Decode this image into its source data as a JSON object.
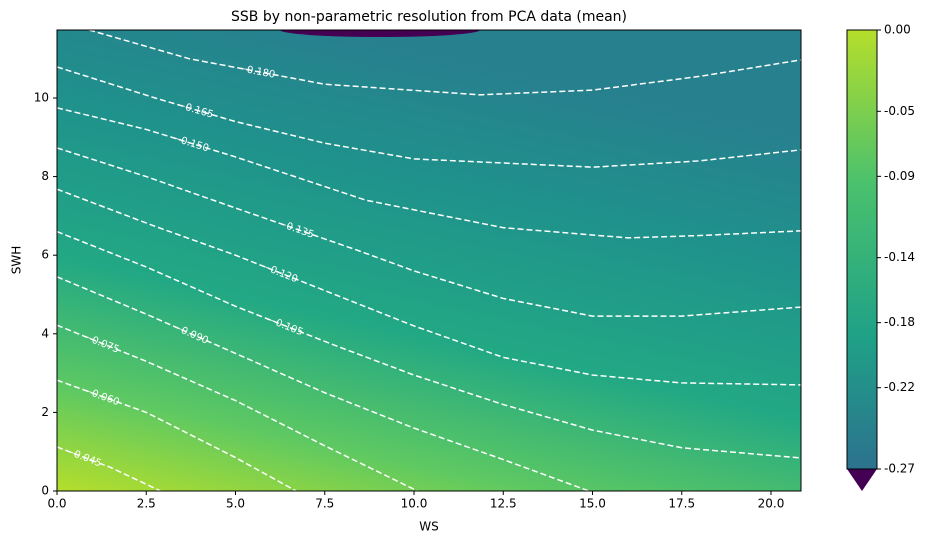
{
  "chart_data": {
    "type": "contour",
    "title": "SSB by non-parametric resolution from PCA data (mean)",
    "xlabel": "WS",
    "ylabel": "SWH",
    "xlim": [
      0,
      20.84
    ],
    "ylim": [
      0,
      11.73
    ],
    "xticks": [
      {
        "value": 0,
        "label": "0.0"
      },
      {
        "value": 2.5,
        "label": "2.5"
      },
      {
        "value": 5,
        "label": "5.0"
      },
      {
        "value": 7.5,
        "label": "7.5"
      },
      {
        "value": 10,
        "label": "10.0"
      },
      {
        "value": 12.5,
        "label": "12.5"
      },
      {
        "value": 15,
        "label": "15.0"
      },
      {
        "value": 17.5,
        "label": "17.5"
      },
      {
        "value": 20,
        "label": "20.0"
      }
    ],
    "yticks": [
      0,
      2,
      4,
      6,
      8,
      10
    ],
    "contours": [
      {
        "label": "−0.045",
        "x": [
          0,
          1.5,
          2.9
        ],
        "y": [
          1.12,
          0.6,
          0
        ]
      },
      {
        "label": "−0.060",
        "x": [
          0,
          2.5,
          5,
          6.7
        ],
        "y": [
          2.82,
          2.0,
          0.85,
          0
        ]
      },
      {
        "label": "−0.075",
        "x": [
          0,
          2.5,
          5,
          7.5,
          10.1
        ],
        "y": [
          4.22,
          3.3,
          2.3,
          1.15,
          0
        ]
      },
      {
        "label": "−0.090",
        "x": [
          0,
          2.5,
          5,
          7.5,
          10,
          12.5,
          14.9
        ],
        "y": [
          5.45,
          4.5,
          3.5,
          2.5,
          1.6,
          0.8,
          0
        ]
      },
      {
        "label": "−0.105",
        "x": [
          0,
          2.5,
          5,
          7.8,
          10,
          12.5,
          15,
          17.5,
          20.84
        ],
        "y": [
          6.6,
          5.7,
          4.7,
          3.7,
          2.95,
          2.2,
          1.55,
          1.1,
          0.84
        ]
      },
      {
        "label": "−0.120",
        "x": [
          0,
          2.7,
          5,
          7.5,
          10,
          12.5,
          15,
          17.5,
          20.84
        ],
        "y": [
          7.68,
          6.75,
          6.0,
          5.1,
          4.2,
          3.4,
          2.95,
          2.75,
          2.7
        ]
      },
      {
        "label": "−0.135",
        "x": [
          0,
          2.5,
          5,
          8.4,
          10,
          12.5,
          15,
          17.5,
          20.84
        ],
        "y": [
          8.73,
          8.0,
          7.2,
          6.13,
          5.6,
          4.9,
          4.45,
          4.45,
          4.68
        ]
      },
      {
        "label": "−0.150",
        "x": [
          0,
          2.5,
          5,
          8.65,
          12.5,
          16,
          18,
          20.84
        ],
        "y": [
          9.75,
          9.2,
          8.5,
          7.4,
          6.7,
          6.44,
          6.5,
          6.62
        ]
      },
      {
        "label": "−0.165",
        "x": [
          0,
          2.75,
          5,
          7.5,
          10,
          15,
          18,
          20.84
        ],
        "y": [
          10.79,
          10.0,
          9.4,
          8.85,
          8.45,
          8.24,
          8.4,
          8.68
        ]
      },
      {
        "label": "−0.180",
        "x": [
          0.9,
          3.7,
          7.5,
          11.85,
          15,
          18,
          20.84
        ],
        "y": [
          11.73,
          11.0,
          10.35,
          10.08,
          10.2,
          10.55,
          10.97
        ]
      }
    ],
    "colorbar": {
      "lim": [
        -0.27,
        0.0
      ],
      "ticks": [
        {
          "value": 0.0,
          "label": "0.00"
        },
        {
          "value": -0.05,
          "label": "-0.05"
        },
        {
          "value": -0.09,
          "label": "-0.09"
        },
        {
          "value": -0.14,
          "label": "-0.14"
        },
        {
          "value": -0.18,
          "label": "-0.18"
        },
        {
          "value": -0.22,
          "label": "-0.22"
        },
        {
          "value": -0.27,
          "label": "-0.27"
        }
      ]
    }
  }
}
